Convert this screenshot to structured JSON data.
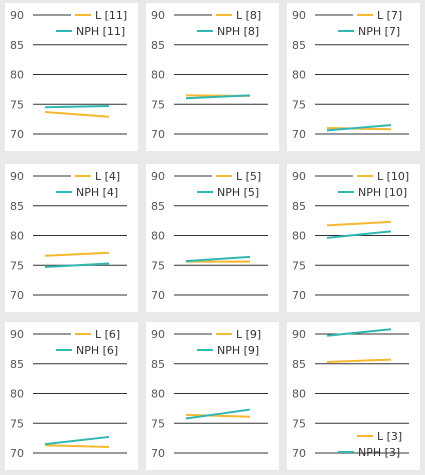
{
  "colors": {
    "L": "#f5b82e",
    "NPH": "#2fb7b3",
    "grid": "#333333",
    "text": "#555555"
  },
  "chart_data": [
    {
      "type": "line",
      "ylim": [
        70,
        90
      ],
      "yticks": [
        "90",
        "85",
        "80",
        "75",
        "70"
      ],
      "legend_position": "top-right",
      "series": [
        {
          "name": "L [11]",
          "key": "L",
          "values": [
            73.7,
            72.9
          ]
        },
        {
          "name": "NPH [11]",
          "key": "NPH",
          "values": [
            74.5,
            74.7
          ]
        }
      ]
    },
    {
      "type": "line",
      "ylim": [
        70,
        90
      ],
      "yticks": [
        "90",
        "85",
        "80",
        "75",
        "70"
      ],
      "legend_position": "top-right",
      "series": [
        {
          "name": "L [8]",
          "key": "L",
          "values": [
            76.5,
            76.4
          ]
        },
        {
          "name": "NPH [8]",
          "key": "NPH",
          "values": [
            76.0,
            76.5
          ]
        }
      ]
    },
    {
      "type": "line",
      "ylim": [
        70,
        90
      ],
      "yticks": [
        "90",
        "85",
        "80",
        "75",
        "70"
      ],
      "legend_position": "top-right",
      "series": [
        {
          "name": "L [7]",
          "key": "L",
          "values": [
            71.0,
            70.8
          ]
        },
        {
          "name": "NPH [7]",
          "key": "NPH",
          "values": [
            70.6,
            71.5
          ]
        }
      ]
    },
    {
      "type": "line",
      "ylim": [
        70,
        90
      ],
      "yticks": [
        "90",
        "85",
        "80",
        "75",
        "70"
      ],
      "legend_position": "top-right",
      "series": [
        {
          "name": "L [4]",
          "key": "L",
          "values": [
            76.6,
            77.1
          ]
        },
        {
          "name": "NPH [4]",
          "key": "NPH",
          "values": [
            74.7,
            75.3
          ]
        }
      ]
    },
    {
      "type": "line",
      "ylim": [
        70,
        90
      ],
      "yticks": [
        "90",
        "85",
        "80",
        "75",
        "70"
      ],
      "legend_position": "top-right",
      "series": [
        {
          "name": "L [5]",
          "key": "L",
          "values": [
            75.6,
            75.6
          ]
        },
        {
          "name": "NPH [5]",
          "key": "NPH",
          "values": [
            75.7,
            76.4
          ]
        }
      ]
    },
    {
      "type": "line",
      "ylim": [
        70,
        90
      ],
      "yticks": [
        "90",
        "85",
        "80",
        "75",
        "70"
      ],
      "legend_position": "top-right",
      "series": [
        {
          "name": "L [10]",
          "key": "L",
          "values": [
            81.7,
            82.3
          ]
        },
        {
          "name": "NPH [10]",
          "key": "NPH",
          "values": [
            79.6,
            80.7
          ]
        }
      ]
    },
    {
      "type": "line",
      "ylim": [
        70,
        90
      ],
      "yticks": [
        "90",
        "85",
        "80",
        "75",
        "70"
      ],
      "legend_position": "top-right",
      "series": [
        {
          "name": "L [6]",
          "key": "L",
          "values": [
            71.3,
            71.0
          ]
        },
        {
          "name": "NPH [6]",
          "key": "NPH",
          "values": [
            71.5,
            72.7
          ]
        }
      ]
    },
    {
      "type": "line",
      "ylim": [
        70,
        90
      ],
      "yticks": [
        "90",
        "85",
        "80",
        "75",
        "70"
      ],
      "legend_position": "top-right",
      "series": [
        {
          "name": "L [9]",
          "key": "L",
          "values": [
            76.4,
            76.1
          ]
        },
        {
          "name": "NPH [9]",
          "key": "NPH",
          "values": [
            75.8,
            77.3
          ]
        }
      ]
    },
    {
      "type": "line",
      "ylim": [
        70,
        90
      ],
      "yticks": [
        "90",
        "85",
        "80",
        "75",
        "70"
      ],
      "legend_position": "bottom-right",
      "series": [
        {
          "name": "L [3]",
          "key": "L",
          "values": [
            85.3,
            85.7
          ]
        },
        {
          "name": "NPH [3]",
          "key": "NPH",
          "values": [
            89.7,
            90.8
          ]
        }
      ]
    }
  ]
}
